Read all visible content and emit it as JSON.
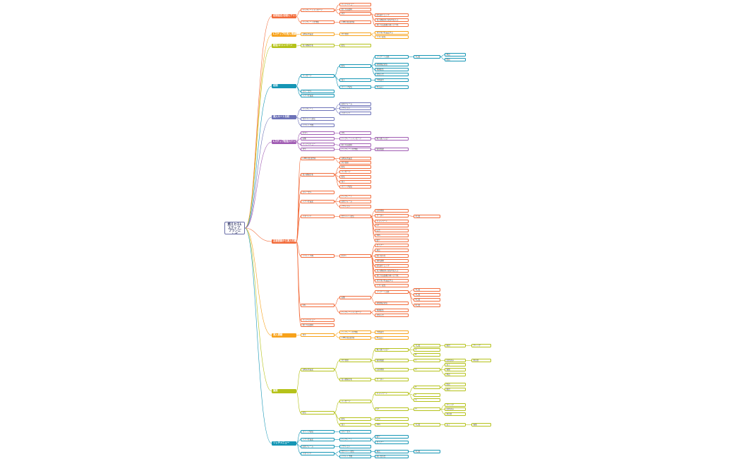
{
  "root": "燃えセろLステップ_プランニング",
  "branches": [
    {
      "label": "初期設定/初回ヒアリング",
      "color": "#f26b3a"
    },
    {
      "label": "Lステップの流入/動線",
      "color": "#f7a21b"
    },
    {
      "label": "配信/キャンペーン",
      "color": "#b5c21a"
    },
    {
      "label": "初期",
      "color": "#1596b5"
    },
    {
      "label": "流入ルート分析",
      "color": "#6d72b8"
    },
    {
      "label": "Lステップ配信スケジュール",
      "color": "#a05cb3"
    },
    {
      "label": "友達登録から流入の構成",
      "color": "#f26b3a"
    },
    {
      "label": "流入導線",
      "color": "#f7a21b"
    },
    {
      "label": "施策",
      "color": "#b5c21a"
    },
    {
      "label": "リッチメニュー",
      "color": "#1596b5"
    }
  ],
  "texts": {
    "a": [
      "テンプレートメッセージ",
      "リッチメニュー",
      "友だち追加時",
      "タグ",
      "テンプレートを作成",
      "LINEの友達登録",
      "自動応答設定",
      "タグ管理",
      "流入経路分析",
      "配信",
      "メッセージ",
      "配信",
      "流入",
      "ステップ配信",
      "カルーセル",
      "シナリオ設定",
      "テンプレート",
      "回答フォーム",
      "アクション",
      "リマインド",
      "セグメント配信",
      "イベント予約",
      "ボタン",
      "URL",
      "画像"
    ],
    "b": [
      "配信前チェック",
      "流入経路別に配信を変える",
      "友だち追加後のあいさつ文",
      "タグ付けを設定する",
      "テスト配信",
      "アンケート回答",
      "期間限定配信",
      "特典配信",
      "お知らせ",
      "予約受付",
      "申込完了",
      "購入後フォロー",
      "個別相談",
      "回答内容",
      "クーポン",
      "キャンペーン",
      "LP",
      "広告",
      "SNS",
      "紹介",
      "セミナー",
      "来店",
      "問い合わせ",
      "資料請求"
    ],
    "c": [
      "1日目",
      "2日目",
      "3日目",
      "4日目",
      "5日目",
      "6日目",
      "7日目",
      "A",
      "B",
      "C",
      "D",
      "E",
      "F",
      "G",
      "H"
    ],
    "d": [
      "未読",
      "既読",
      "開封",
      "クリック",
      "回答済み",
      "未回答",
      "完了",
      "保留"
    ]
  }
}
